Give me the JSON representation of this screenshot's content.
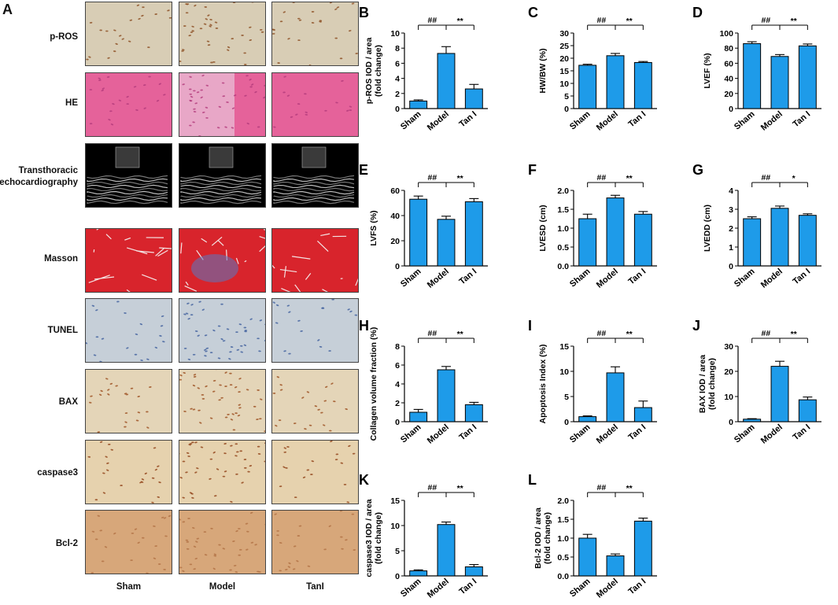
{
  "figure": {
    "panel_a_letter": "A",
    "row_labels": [
      "p-ROS",
      "HE",
      "Transthoracic echocardiography",
      "Masson",
      "TUNEL",
      "BAX",
      "caspase3",
      "Bcl-2"
    ],
    "column_labels": [
      "Sham",
      "Model",
      "TanI"
    ],
    "stain_colors": {
      "p-ROS": "#d8cdb5",
      "HE": "#e5629a",
      "echo": "#000000",
      "Masson": "#d8242c",
      "TUNEL": "#c6cfd8",
      "BAX": "#e4d5b8",
      "caspase3": "#e6d2ae",
      "Bcl-2": "#d7a77a"
    },
    "bar_color": "#1e9be9"
  },
  "chart_data": [
    {
      "letter": "B",
      "type": "bar",
      "categories": [
        "Sham",
        "Model",
        "Tan I"
      ],
      "values": [
        1.0,
        7.3,
        2.6
      ],
      "errors": [
        0.15,
        0.9,
        0.6
      ],
      "ylabel_lines": [
        "p-ROS IOD / area",
        "(fold change)"
      ],
      "ylim": [
        0,
        10
      ],
      "ticks": [
        0,
        2,
        4,
        6,
        8,
        10
      ],
      "decimals": 0,
      "sig_left": "##",
      "sig_right": "**"
    },
    {
      "letter": "C",
      "type": "bar",
      "categories": [
        "Sham",
        "Model",
        "Tan I"
      ],
      "values": [
        17.2,
        21.0,
        18.3
      ],
      "errors": [
        0.4,
        0.9,
        0.4
      ],
      "ylabel_lines": [
        "HW/BW (%)"
      ],
      "ylim": [
        0,
        30
      ],
      "ticks": [
        0,
        5,
        10,
        15,
        20,
        25,
        30
      ],
      "decimals": 0,
      "sig_left": "##",
      "sig_right": "**"
    },
    {
      "letter": "D",
      "type": "bar",
      "categories": [
        "Sham",
        "Model",
        "Tan I"
      ],
      "values": [
        86,
        69,
        83
      ],
      "errors": [
        2.5,
        2.5,
        2.5
      ],
      "ylabel_lines": [
        "LVEF (%)"
      ],
      "ylim": [
        0,
        100
      ],
      "ticks": [
        0,
        20,
        40,
        60,
        80,
        100
      ],
      "decimals": 0,
      "sig_left": "##",
      "sig_right": "**"
    },
    {
      "letter": "E",
      "type": "bar",
      "categories": [
        "Sham",
        "Model",
        "Tan I"
      ],
      "values": [
        53,
        37,
        51
      ],
      "errors": [
        2.5,
        2.5,
        2.5
      ],
      "ylabel_lines": [
        "LVFS (%)"
      ],
      "ylim": [
        0,
        60
      ],
      "ticks": [
        0,
        20,
        40,
        60
      ],
      "decimals": 0,
      "sig_left": "##",
      "sig_right": "**"
    },
    {
      "letter": "F",
      "type": "bar",
      "categories": [
        "Sham",
        "Model",
        "Tan I"
      ],
      "values": [
        1.25,
        1.8,
        1.37
      ],
      "errors": [
        0.12,
        0.07,
        0.07
      ],
      "ylabel_lines": [
        "LVESD (cm)"
      ],
      "ylim": [
        0,
        2
      ],
      "ticks": [
        0,
        0.5,
        1.0,
        1.5,
        2.0
      ],
      "decimals": 1,
      "sig_left": "##",
      "sig_right": "**"
    },
    {
      "letter": "G",
      "type": "bar",
      "categories": [
        "Sham",
        "Model",
        "Tan I"
      ],
      "values": [
        2.5,
        3.05,
        2.68
      ],
      "errors": [
        0.1,
        0.12,
        0.08
      ],
      "ylabel_lines": [
        "LVEDD (cm)"
      ],
      "ylim": [
        0,
        4
      ],
      "ticks": [
        0,
        1,
        2,
        3,
        4
      ],
      "decimals": 0,
      "sig_left": "##",
      "sig_right": "*"
    },
    {
      "letter": "H",
      "type": "bar",
      "categories": [
        "Sham",
        "Model",
        "Tan I"
      ],
      "values": [
        1.0,
        5.5,
        1.8
      ],
      "errors": [
        0.3,
        0.35,
        0.25
      ],
      "ylabel_lines": [
        "Collagen volume fraction (%)"
      ],
      "ylim": [
        0,
        8
      ],
      "ticks": [
        0,
        2,
        4,
        6,
        8
      ],
      "decimals": 0,
      "sig_left": "##",
      "sig_right": "**"
    },
    {
      "letter": "I",
      "type": "bar",
      "categories": [
        "Sham",
        "Model",
        "Tan I"
      ],
      "values": [
        1.0,
        9.7,
        2.8
      ],
      "errors": [
        0.15,
        1.2,
        1.3
      ],
      "ylabel_lines": [
        "Apoptosis Index (%)"
      ],
      "ylim": [
        0,
        15
      ],
      "ticks": [
        0,
        5,
        10,
        15
      ],
      "decimals": 0,
      "sig_left": "##",
      "sig_right": "**"
    },
    {
      "letter": "J",
      "type": "bar",
      "categories": [
        "Sham",
        "Model",
        "Tan I"
      ],
      "values": [
        1.0,
        22.0,
        8.7
      ],
      "errors": [
        0.2,
        2.0,
        1.1
      ],
      "ylabel_lines": [
        "BAX IOD / area",
        "(fold change)"
      ],
      "ylim": [
        0,
        30
      ],
      "ticks": [
        0,
        10,
        20,
        30
      ],
      "decimals": 0,
      "sig_left": "##",
      "sig_right": "**"
    },
    {
      "letter": "K",
      "type": "bar",
      "categories": [
        "Sham",
        "Model",
        "Tan I"
      ],
      "values": [
        1.0,
        10.2,
        1.8
      ],
      "errors": [
        0.2,
        0.5,
        0.45
      ],
      "ylabel_lines": [
        "caspase3 IOD / area",
        "(fold change)"
      ],
      "ylim": [
        0,
        15
      ],
      "ticks": [
        0,
        5,
        10,
        15
      ],
      "decimals": 0,
      "sig_left": "##",
      "sig_right": "**"
    },
    {
      "letter": "L",
      "type": "bar",
      "categories": [
        "Sham",
        "Model",
        "Tan I"
      ],
      "values": [
        1.0,
        0.53,
        1.45
      ],
      "errors": [
        0.1,
        0.05,
        0.08
      ],
      "ylabel_lines": [
        "Bcl-2 IOD / area",
        "(fold change)"
      ],
      "ylim": [
        0,
        2
      ],
      "ticks": [
        0,
        0.5,
        1.0,
        1.5,
        2.0
      ],
      "decimals": 1,
      "sig_left": "##",
      "sig_right": "**"
    }
  ]
}
